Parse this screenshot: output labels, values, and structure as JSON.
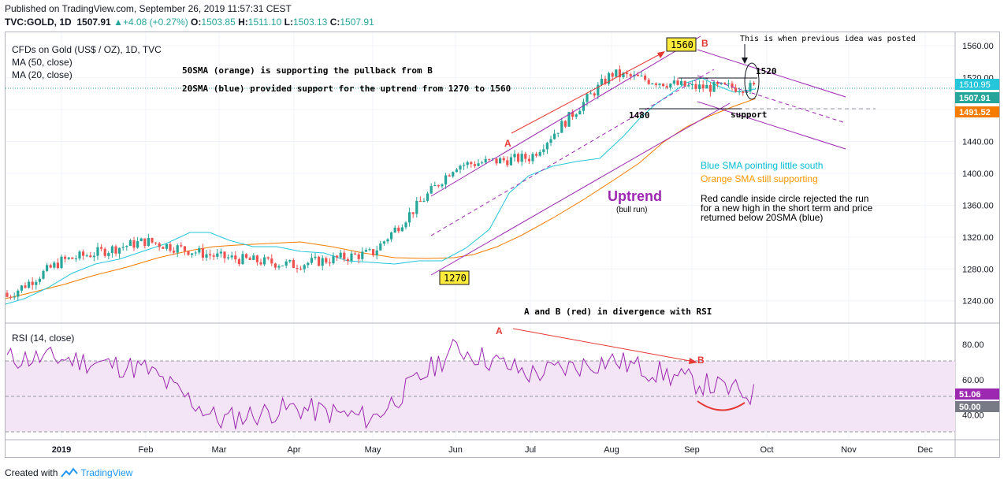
{
  "header": {
    "published": "Published on TradingView.com, September 26, 2019 11:57:31 CEST",
    "symbol": "TVC:GOLD, 1D",
    "last": "1507.91",
    "change": "+4.08 (+0.27%)",
    "open_label": "O:",
    "open": "1503.85",
    "high_label": "H:",
    "high": "1511.10",
    "low_label": "L:",
    "low": "1503.13",
    "close_label": "C:",
    "close": "1507.91"
  },
  "legend": {
    "title": "CFDs on Gold (US$ / OZ), 1D, TVC",
    "ma50": "MA (50, close)",
    "ma20": "MA (20, close)",
    "rsi": "RSI (14, close)"
  },
  "annotations": {
    "note1": "50SMA (orange) is supporting the pullback from B",
    "note2": "20SMA (blue) provided support for the uptrend from 1270 to 1560",
    "previous_idea": "This is when previous idea was posted",
    "box_1560": "1560",
    "box_1270": "1270",
    "label_A": "A",
    "label_B": "B",
    "label_1520": "1520",
    "label_1480": "1480",
    "support": "support",
    "blue_sma": "Blue SMA pointing little south",
    "orange_sma": "Orange SMA still supporting",
    "red_candle_1": "Red candle inside circle rejected the run",
    "red_candle_2": "for a new high in the short term and price",
    "red_candle_3": "returned below 20SMA (blue)",
    "uptrend": "Uptrend",
    "bull_run": "(bull run)",
    "divergence": "A and B (red) in divergence with RSI",
    "rsi_A": "A",
    "rsi_B": "B"
  },
  "price_badges": {
    "ma20": "1510.95",
    "close": "1507.91",
    "ma50": "1491.52",
    "rsi_value": "51.06",
    "rsi_mid": "50.00"
  },
  "footer": {
    "created_with": "Created with",
    "brand": "TradingView"
  },
  "colors": {
    "up": "#26a69a",
    "down": "#ef5350",
    "ma20": "#26c6da",
    "ma50": "#f57c00",
    "channel": "#9c27b0",
    "annotation_red": "#e53935",
    "rsi_line": "#9c27b0",
    "rsi_band": "#f3e5f5"
  },
  "chart_data": [
    {
      "type": "candlestick",
      "title": "CFDs on Gold (US$ / OZ), 1D, TVC",
      "x_labels": [
        "2019",
        "Feb",
        "Mar",
        "Apr",
        "May",
        "Jun",
        "Jul",
        "Aug",
        "Sep",
        "Oct",
        "Nov",
        "Dec"
      ],
      "y_ticks": [
        1240,
        1280,
        1320,
        1360,
        1400,
        1440,
        1480,
        1520,
        1560
      ],
      "ylim": [
        1212,
        1577
      ],
      "grid": true,
      "series": [
        {
          "name": "MA (50, close)",
          "last": 1491.52
        },
        {
          "name": "MA (20, close)",
          "last": 1510.95
        }
      ],
      "monthly_close": [
        {
          "x": "2019",
          "close": 1290
        },
        {
          "x": "Feb",
          "close": 1315
        },
        {
          "x": "Mar",
          "close": 1295
        },
        {
          "x": "Apr",
          "close": 1285
        },
        {
          "x": "May",
          "close": 1300
        },
        {
          "x": "Jun",
          "close": 1410
        },
        {
          "x": "Jul",
          "close": 1420
        },
        {
          "x": "Aug",
          "close": 1525
        },
        {
          "x": "Sep",
          "close": 1507.91
        }
      ],
      "last_close": 1507.91
    },
    {
      "type": "line",
      "title": "RSI (14, close)",
      "y_ticks": [
        40,
        60,
        80
      ],
      "ylim": [
        26,
        92
      ],
      "band": [
        30,
        70
      ],
      "series": [
        {
          "name": "RSI (14, close)",
          "points": [
            {
              "x": "2019",
              "y": 72
            },
            {
              "x": "Feb",
              "y": 66
            },
            {
              "x": "Mar",
              "y": 37
            },
            {
              "x": "Apr",
              "y": 44
            },
            {
              "x": "May",
              "y": 38
            },
            {
              "x": "Jun",
              "y": 78
            },
            {
              "x": "Jul",
              "y": 63
            },
            {
              "x": "Aug",
              "y": 71
            },
            {
              "x": "Sep",
              "y": 59
            },
            {
              "x": "Oct",
              "y": 51.06
            }
          ]
        }
      ],
      "last": 51.06
    }
  ]
}
